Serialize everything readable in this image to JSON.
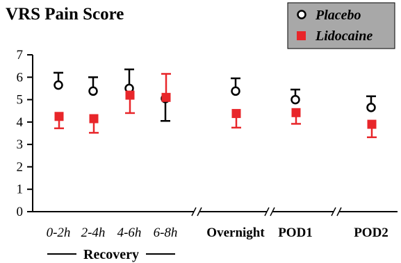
{
  "chart_data": {
    "type": "scatter",
    "title": "VRS Pain Score",
    "ylim": [
      0,
      7
    ],
    "yticks": [
      "0",
      "1",
      "2",
      "3",
      "4",
      "5",
      "6",
      "7"
    ],
    "categories": [
      "0-2h",
      "2-4h",
      "4-6h",
      "6-8h",
      "Overnight",
      "POD1",
      "POD2"
    ],
    "group_label": "Recovery",
    "axis_breaks": true,
    "legend_position": "top-right",
    "series": [
      {
        "name": "Placebo",
        "marker": "open-circle",
        "color": "#000000",
        "values": [
          5.65,
          5.38,
          5.5,
          5.05,
          5.38,
          5.0,
          4.65
        ],
        "err_low": [
          5.65,
          5.38,
          5.5,
          4.05,
          5.38,
          5.0,
          4.65
        ],
        "err_high": [
          6.2,
          6.0,
          6.35,
          5.05,
          5.95,
          5.45,
          5.15
        ]
      },
      {
        "name": "Lidocaine",
        "marker": "filled-square",
        "color": "#e8262a",
        "values": [
          4.25,
          4.15,
          5.2,
          5.1,
          4.38,
          4.42,
          3.9
        ],
        "err_low": [
          3.72,
          3.52,
          4.4,
          5.1,
          3.75,
          3.92,
          3.32
        ],
        "err_high": [
          4.25,
          4.15,
          5.2,
          6.15,
          4.38,
          4.42,
          3.9
        ]
      }
    ]
  }
}
